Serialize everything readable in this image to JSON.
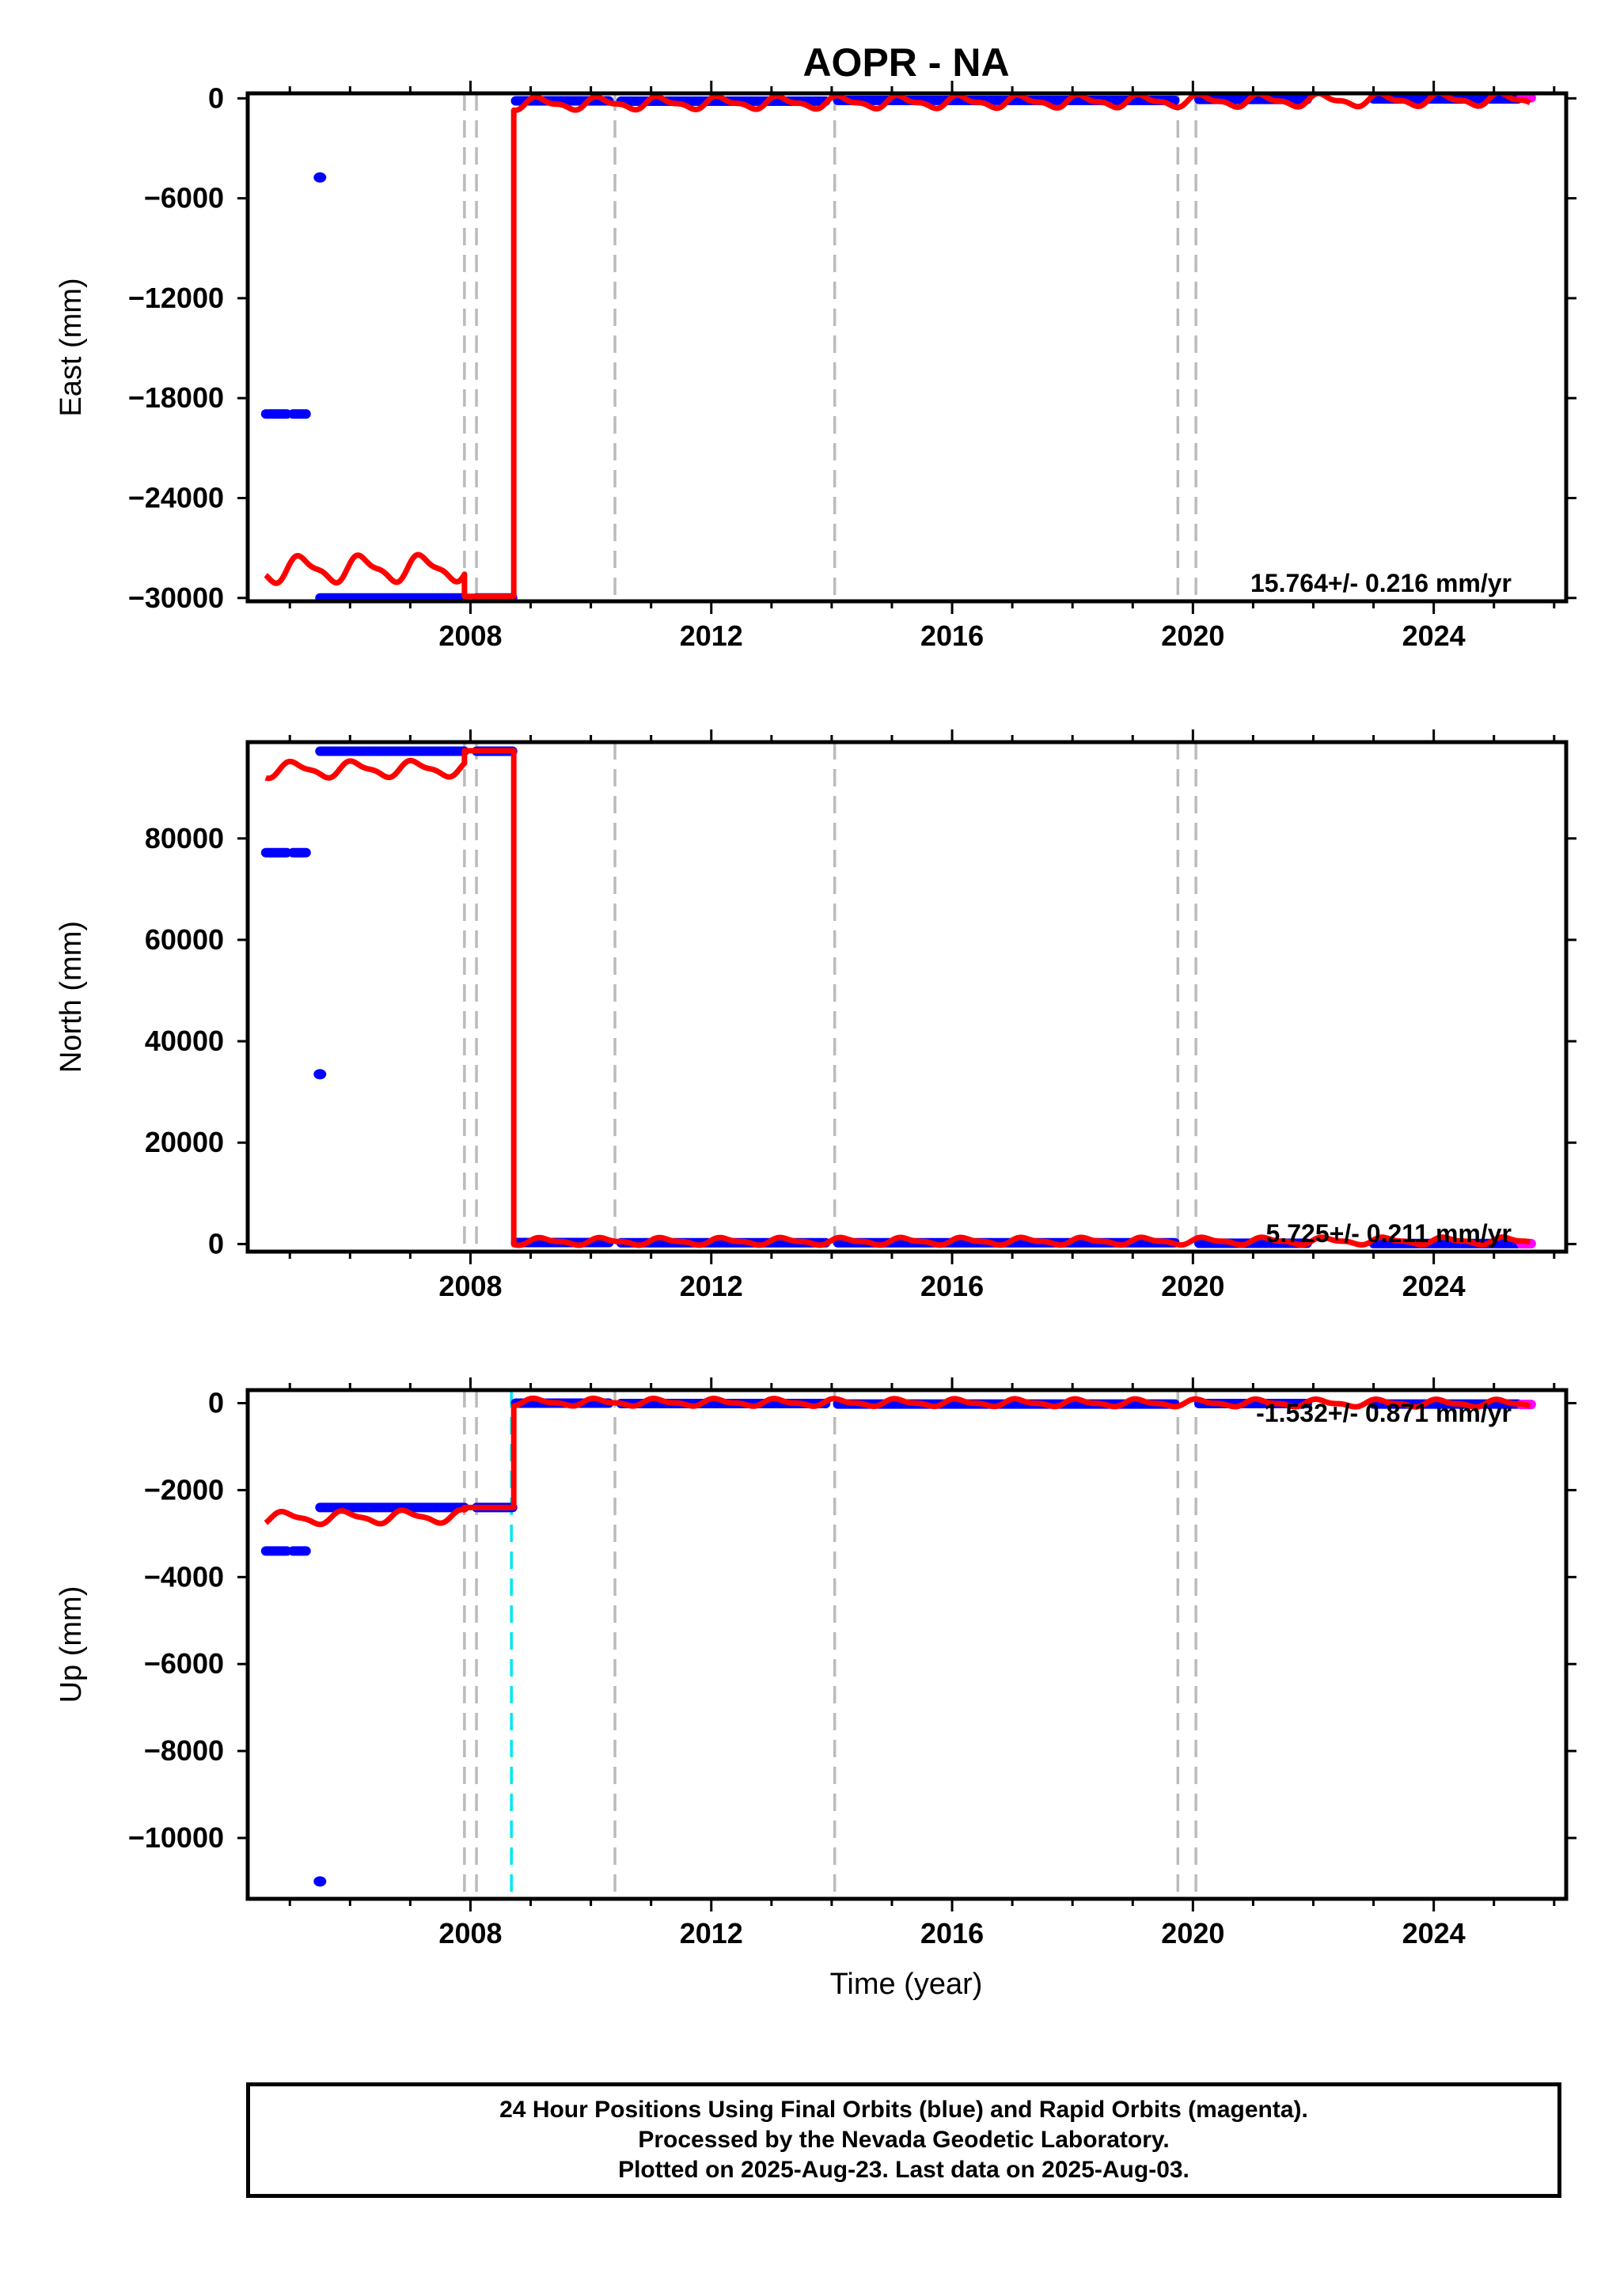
{
  "chart_data": {
    "type": "scatter",
    "title": "AOPR - NA",
    "xlabel": "Time (year)",
    "xlim": [
      2004.3,
      2026.2
    ],
    "x_ticks": [
      2008,
      2012,
      2016,
      2020,
      2024
    ],
    "x_tick_labels": [
      "2008",
      "2012",
      "2016",
      "2020",
      "2024"
    ],
    "x_minor_step": 1,
    "grid": false,
    "vertical_markers": {
      "equipment_changes": [
        2007.9,
        2008.1,
        2010.4,
        2014.05,
        2019.75,
        2020.05
      ],
      "color": "#bbbbbb",
      "earthquake_up_panel": [
        2008.68
      ],
      "earthquake_color": "#00e5ee"
    },
    "series_colors": {
      "final": "#0000ff",
      "rapid": "#ff00ff",
      "model": "#ff0000"
    },
    "panels": [
      {
        "ylabel": "East (mm)",
        "ylim": [
          -30200,
          300
        ],
        "y_ticks": [
          0,
          -6000,
          -12000,
          -18000,
          -24000,
          -30000
        ],
        "y_tick_labels": [
          "0",
          "−6000",
          "−12000",
          "−18000",
          "−24000",
          "−30000"
        ],
        "rate_label": "15.764+/- 0.216 mm/yr",
        "final_points": [
          {
            "x0": 2005.5,
            "x1": 2005.5,
            "y": -4750
          },
          {
            "x0": 2004.6,
            "x1": 2004.95,
            "y": -18950
          },
          {
            "x0": 2005.05,
            "x1": 2005.27,
            "y": -18950
          },
          {
            "x0": 2005.5,
            "x1": 2007.9,
            "y": -30000
          },
          {
            "x0": 2008.1,
            "x1": 2008.7,
            "y": -30000
          },
          {
            "x0": 2008.75,
            "x1": 2010.3,
            "y": -150
          },
          {
            "x0": 2010.5,
            "x1": 2013.9,
            "y": -170
          },
          {
            "x0": 2014.1,
            "x1": 2019.7,
            "y": -120
          },
          {
            "x0": 2020.1,
            "x1": 2021.9,
            "y": -60
          },
          {
            "x0": 2023.0,
            "x1": 2025.4,
            "y": -30
          }
        ],
        "rapid_points": [
          {
            "x0": 2025.45,
            "x1": 2025.62,
            "y": 40
          }
        ],
        "model": {
          "pre": {
            "x_start": 2004.6,
            "x_end": 2007.9,
            "y_start": -28300,
            "y_end": -28200,
            "amp": 700,
            "phase": 0.3
          },
          "mid_y": -29900,
          "jump_x": 2008.72,
          "post": {
            "x_start": 2008.72,
            "x_end": 2025.6,
            "y_start": -330,
            "rate": 15.764,
            "amp": 320,
            "phase": 0.6
          }
        }
      },
      {
        "ylabel": "North (mm)",
        "ylim": [
          -1500,
          99000
        ],
        "y_ticks": [
          0,
          20000,
          40000,
          60000,
          80000
        ],
        "y_tick_labels": [
          "0",
          "20000",
          "40000",
          "60000",
          "80000"
        ],
        "rate_label": "5.725+/- 0.211 mm/yr",
        "final_points": [
          {
            "x0": 2005.5,
            "x1": 2005.5,
            "y": 33500
          },
          {
            "x0": 2004.6,
            "x1": 2004.95,
            "y": 77200
          },
          {
            "x0": 2005.05,
            "x1": 2005.27,
            "y": 77200
          },
          {
            "x0": 2005.5,
            "x1": 2007.9,
            "y": 97200
          },
          {
            "x0": 2008.1,
            "x1": 2008.7,
            "y": 97200
          },
          {
            "x0": 2008.75,
            "x1": 2010.3,
            "y": 300
          },
          {
            "x0": 2010.5,
            "x1": 2013.9,
            "y": 250
          },
          {
            "x0": 2014.1,
            "x1": 2019.7,
            "y": 250
          },
          {
            "x0": 2020.1,
            "x1": 2021.9,
            "y": 150
          },
          {
            "x0": 2023.0,
            "x1": 2025.4,
            "y": 100
          }
        ],
        "rapid_points": [
          {
            "x0": 2025.45,
            "x1": 2025.62,
            "y": 80
          }
        ],
        "model": {
          "pre": {
            "x_start": 2004.6,
            "x_end": 2007.9,
            "y_start": 93500,
            "y_end": 93800,
            "amp": 1400,
            "phase": 1.1
          },
          "mid_y": 97300,
          "jump_x": 2008.72,
          "post": {
            "x_start": 2008.72,
            "x_end": 2025.6,
            "y_start": 500,
            "rate": 5.725,
            "amp": 600,
            "phase": 0.2
          }
        }
      },
      {
        "ylabel": "Up (mm)",
        "ylim": [
          -11400,
          300
        ],
        "y_ticks": [
          0,
          -2000,
          -4000,
          -6000,
          -8000,
          -10000
        ],
        "y_tick_labels": [
          "0",
          "−2000",
          "−4000",
          "−6000",
          "−8000",
          "−10000"
        ],
        "rate_label": "-1.532+/- 0.871 mm/yr",
        "final_points": [
          {
            "x0": 2005.5,
            "x1": 2005.5,
            "y": -11000
          },
          {
            "x0": 2004.6,
            "x1": 2004.95,
            "y": -3400
          },
          {
            "x0": 2005.05,
            "x1": 2005.27,
            "y": -3400
          },
          {
            "x0": 2005.5,
            "x1": 2007.9,
            "y": -2400
          },
          {
            "x0": 2008.1,
            "x1": 2008.7,
            "y": -2400
          },
          {
            "x0": 2008.75,
            "x1": 2010.3,
            "y": 0
          },
          {
            "x0": 2010.5,
            "x1": 2013.9,
            "y": -10
          },
          {
            "x0": 2014.1,
            "x1": 2019.7,
            "y": -20
          },
          {
            "x0": 2020.1,
            "x1": 2021.9,
            "y": -10
          },
          {
            "x0": 2023.0,
            "x1": 2025.4,
            "y": -20
          }
        ],
        "rapid_points": [
          {
            "x0": 2025.45,
            "x1": 2025.62,
            "y": -30
          }
        ],
        "model": {
          "pre": {
            "x_start": 2004.6,
            "x_end": 2007.9,
            "y_start": -2650,
            "y_end": -2600,
            "amp": 130,
            "phase": 2.0
          },
          "mid_y": -2400,
          "jump_x": 2008.72,
          "post": {
            "x_start": 2008.72,
            "x_end": 2025.6,
            "y_start": 20,
            "rate": -1.532,
            "amp": 70,
            "phase": 0.9
          }
        }
      }
    ]
  },
  "footer": {
    "line1": "24 Hour Positions Using Final Orbits (blue) and Rapid Orbits (magenta).",
    "line2": "Processed by the Nevada Geodetic Laboratory.",
    "line3": "Plotted on 2025-Aug-23. Last data on 2025-Aug-03."
  }
}
